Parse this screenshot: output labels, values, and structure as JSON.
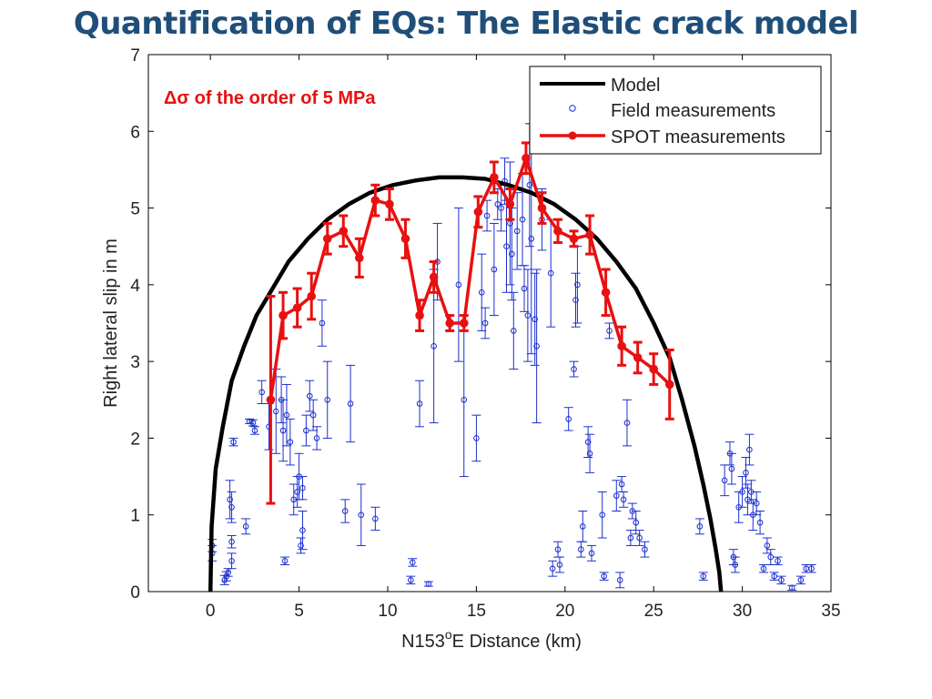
{
  "slide": {
    "title": "Quantification of EQs: The Elastic crack model"
  },
  "chart_data": {
    "type": "scatter",
    "xlabel_prefix": "N153",
    "xlabel_sup": "o",
    "xlabel_suffix": "E Distance (km)",
    "ylabel": "Right lateral slip in m",
    "xlim": [
      -3.5,
      35
    ],
    "ylim": [
      0,
      7
    ],
    "xticks": [
      0,
      5,
      10,
      15,
      20,
      25,
      30,
      35
    ],
    "yticks": [
      0,
      1,
      2,
      3,
      4,
      5,
      6,
      7
    ],
    "grid": false,
    "legend_position": "top-right",
    "annotation": "Δσ of the order of 5 MPa",
    "series": [
      {
        "name": "Model",
        "kind": "line",
        "color": "#000000",
        "x": [
          0,
          0.07,
          0.3,
          0.7,
          1.2,
          1.9,
          2.6,
          3.5,
          4.4,
          5.5,
          6.6,
          7.8,
          9.0,
          10.3,
          11.6,
          12.9,
          14.2,
          15.5,
          16.8,
          18.1,
          19.4,
          20.6,
          21.8,
          22.9,
          24.0,
          25.0,
          25.9,
          26.6,
          27.3,
          27.8,
          28.2,
          28.5,
          28.7,
          28.8
        ],
        "y": [
          0,
          0.85,
          1.6,
          2.15,
          2.75,
          3.2,
          3.6,
          3.95,
          4.3,
          4.6,
          4.85,
          5.05,
          5.2,
          5.3,
          5.36,
          5.4,
          5.4,
          5.38,
          5.3,
          5.2,
          5.05,
          4.85,
          4.6,
          4.3,
          3.95,
          3.5,
          3.05,
          2.5,
          1.9,
          1.4,
          0.95,
          0.55,
          0.25,
          0
        ]
      },
      {
        "name": "Field measurements",
        "kind": "errorbar-points",
        "color": "#1B2FD0",
        "points": [
          {
            "x": 0.1,
            "y": 0.5,
            "err": 0.1
          },
          {
            "x": 0.1,
            "y": 0.6,
            "err": 0.08
          },
          {
            "x": 0.9,
            "y": 0.2,
            "err": 0.06
          },
          {
            "x": 0.8,
            "y": 0.15,
            "err": 0.06
          },
          {
            "x": 1.0,
            "y": 0.25,
            "err": 0.05
          },
          {
            "x": 1.1,
            "y": 1.2,
            "err": 0.25
          },
          {
            "x": 1.2,
            "y": 1.1,
            "err": 0.2
          },
          {
            "x": 1.2,
            "y": 0.65,
            "err": 0.08
          },
          {
            "x": 1.2,
            "y": 0.4,
            "err": 0.1
          },
          {
            "x": 1.3,
            "y": 1.95,
            "err": 0.05
          },
          {
            "x": 2.0,
            "y": 0.85,
            "err": 0.1
          },
          {
            "x": 2.2,
            "y": 2.22,
            "err": 0.03
          },
          {
            "x": 2.4,
            "y": 2.2,
            "err": 0.04
          },
          {
            "x": 2.5,
            "y": 2.1,
            "err": 0.05
          },
          {
            "x": 2.9,
            "y": 2.6,
            "err": 0.15
          },
          {
            "x": 3.3,
            "y": 2.15,
            "err": 0.3
          },
          {
            "x": 3.7,
            "y": 2.35,
            "err": 0.55
          },
          {
            "x": 4.0,
            "y": 2.5,
            "err": 0.3
          },
          {
            "x": 4.1,
            "y": 2.1,
            "err": 0.4
          },
          {
            "x": 4.2,
            "y": 0.4,
            "err": 0.05
          },
          {
            "x": 4.3,
            "y": 2.3,
            "err": 0.4
          },
          {
            "x": 4.5,
            "y": 1.95,
            "err": 0.3
          },
          {
            "x": 4.7,
            "y": 1.2,
            "err": 0.2
          },
          {
            "x": 4.9,
            "y": 1.3,
            "err": 0.2
          },
          {
            "x": 5.0,
            "y": 1.5,
            "err": 0.3
          },
          {
            "x": 5.1,
            "y": 0.6,
            "err": 0.1
          },
          {
            "x": 5.2,
            "y": 0.8,
            "err": 0.25
          },
          {
            "x": 5.2,
            "y": 1.35,
            "err": 0.15
          },
          {
            "x": 5.4,
            "y": 2.1,
            "err": 0.2
          },
          {
            "x": 5.6,
            "y": 2.55,
            "err": 0.2
          },
          {
            "x": 5.8,
            "y": 2.3,
            "err": 0.2
          },
          {
            "x": 6.0,
            "y": 2.0,
            "err": 0.15
          },
          {
            "x": 6.3,
            "y": 3.5,
            "err": 0.3
          },
          {
            "x": 6.6,
            "y": 2.5,
            "err": 0.5
          },
          {
            "x": 7.6,
            "y": 1.05,
            "err": 0.15
          },
          {
            "x": 7.9,
            "y": 2.45,
            "err": 0.5
          },
          {
            "x": 8.5,
            "y": 1.0,
            "err": 0.4
          },
          {
            "x": 9.3,
            "y": 0.95,
            "err": 0.15
          },
          {
            "x": 11.3,
            "y": 0.15,
            "err": 0.05
          },
          {
            "x": 11.4,
            "y": 0.38,
            "err": 0.05
          },
          {
            "x": 11.8,
            "y": 2.45,
            "err": 0.3
          },
          {
            "x": 12.3,
            "y": 0.1,
            "err": 0.03
          },
          {
            "x": 12.6,
            "y": 3.2,
            "err": 1.0
          },
          {
            "x": 12.8,
            "y": 4.3,
            "err": 0.5
          },
          {
            "x": 14.0,
            "y": 4.0,
            "err": 1.0
          },
          {
            "x": 14.3,
            "y": 2.5,
            "err": 1.0
          },
          {
            "x": 15.0,
            "y": 2.0,
            "err": 0.3
          },
          {
            "x": 15.3,
            "y": 3.9,
            "err": 0.5
          },
          {
            "x": 15.5,
            "y": 3.5,
            "err": 0.2
          },
          {
            "x": 15.6,
            "y": 4.9,
            "err": 0.2
          },
          {
            "x": 16.0,
            "y": 4.2,
            "err": 0.6
          },
          {
            "x": 16.2,
            "y": 5.05,
            "err": 0.2
          },
          {
            "x": 16.4,
            "y": 5.0,
            "err": 0.3
          },
          {
            "x": 16.6,
            "y": 5.35,
            "err": 0.3
          },
          {
            "x": 16.7,
            "y": 4.5,
            "err": 0.6
          },
          {
            "x": 16.9,
            "y": 4.8,
            "err": 0.8
          },
          {
            "x": 17.0,
            "y": 4.4,
            "err": 0.6
          },
          {
            "x": 17.1,
            "y": 3.4,
            "err": 0.5
          },
          {
            "x": 17.3,
            "y": 4.7,
            "err": 0.5
          },
          {
            "x": 17.6,
            "y": 4.85,
            "err": 0.6
          },
          {
            "x": 17.7,
            "y": 3.95,
            "err": 0.3
          },
          {
            "x": 17.9,
            "y": 3.6,
            "err": 0.6
          },
          {
            "x": 18.0,
            "y": 5.3,
            "err": 0.8
          },
          {
            "x": 18.1,
            "y": 4.6,
            "err": 1.5
          },
          {
            "x": 18.3,
            "y": 3.55,
            "err": 0.6
          },
          {
            "x": 18.4,
            "y": 3.2,
            "err": 1.0
          },
          {
            "x": 18.7,
            "y": 4.85,
            "err": 0.4
          },
          {
            "x": 19.2,
            "y": 4.15,
            "err": 0.7
          },
          {
            "x": 19.3,
            "y": 0.3,
            "err": 0.1
          },
          {
            "x": 19.6,
            "y": 0.55,
            "err": 0.1
          },
          {
            "x": 19.7,
            "y": 0.35,
            "err": 0.1
          },
          {
            "x": 20.2,
            "y": 2.25,
            "err": 0.15
          },
          {
            "x": 20.5,
            "y": 2.9,
            "err": 0.1
          },
          {
            "x": 20.6,
            "y": 3.8,
            "err": 0.35
          },
          {
            "x": 20.7,
            "y": 4.0,
            "err": 0.5
          },
          {
            "x": 20.9,
            "y": 0.55,
            "err": 0.1
          },
          {
            "x": 21.0,
            "y": 0.85,
            "err": 0.2
          },
          {
            "x": 21.3,
            "y": 1.95,
            "err": 0.2
          },
          {
            "x": 21.4,
            "y": 1.8,
            "err": 0.25
          },
          {
            "x": 21.5,
            "y": 0.5,
            "err": 0.1
          },
          {
            "x": 22.1,
            "y": 1.0,
            "err": 0.3
          },
          {
            "x": 22.2,
            "y": 0.2,
            "err": 0.05
          },
          {
            "x": 22.5,
            "y": 3.4,
            "err": 0.1
          },
          {
            "x": 22.9,
            "y": 1.25,
            "err": 0.2
          },
          {
            "x": 23.1,
            "y": 0.15,
            "err": 0.1
          },
          {
            "x": 23.2,
            "y": 1.4,
            "err": 0.1
          },
          {
            "x": 23.3,
            "y": 1.2,
            "err": 0.1
          },
          {
            "x": 23.5,
            "y": 2.2,
            "err": 0.3
          },
          {
            "x": 23.7,
            "y": 0.7,
            "err": 0.1
          },
          {
            "x": 23.8,
            "y": 1.05,
            "err": 0.1
          },
          {
            "x": 24.0,
            "y": 0.9,
            "err": 0.15
          },
          {
            "x": 24.2,
            "y": 0.7,
            "err": 0.1
          },
          {
            "x": 24.5,
            "y": 0.55,
            "err": 0.1
          },
          {
            "x": 27.6,
            "y": 0.85,
            "err": 0.1
          },
          {
            "x": 27.8,
            "y": 0.2,
            "err": 0.05
          },
          {
            "x": 29.0,
            "y": 1.45,
            "err": 0.2
          },
          {
            "x": 29.3,
            "y": 1.8,
            "err": 0.15
          },
          {
            "x": 29.4,
            "y": 1.6,
            "err": 0.2
          },
          {
            "x": 29.5,
            "y": 0.45,
            "err": 0.1
          },
          {
            "x": 29.6,
            "y": 0.35,
            "err": 0.1
          },
          {
            "x": 29.8,
            "y": 1.1,
            "err": 0.2
          },
          {
            "x": 30.0,
            "y": 1.3,
            "err": 0.2
          },
          {
            "x": 30.2,
            "y": 1.55,
            "err": 0.2
          },
          {
            "x": 30.3,
            "y": 1.2,
            "err": 0.2
          },
          {
            "x": 30.4,
            "y": 1.85,
            "err": 0.2
          },
          {
            "x": 30.5,
            "y": 1.3,
            "err": 0.15
          },
          {
            "x": 30.6,
            "y": 1.0,
            "err": 0.2
          },
          {
            "x": 30.8,
            "y": 1.15,
            "err": 0.15
          },
          {
            "x": 31.0,
            "y": 0.9,
            "err": 0.15
          },
          {
            "x": 31.2,
            "y": 0.3,
            "err": 0.05
          },
          {
            "x": 31.4,
            "y": 0.6,
            "err": 0.1
          },
          {
            "x": 31.6,
            "y": 0.45,
            "err": 0.1
          },
          {
            "x": 31.8,
            "y": 0.2,
            "err": 0.05
          },
          {
            "x": 32.0,
            "y": 0.4,
            "err": 0.05
          },
          {
            "x": 32.2,
            "y": 0.15,
            "err": 0.05
          },
          {
            "x": 32.8,
            "y": 0.05,
            "err": 0.03
          },
          {
            "x": 33.3,
            "y": 0.15,
            "err": 0.05
          },
          {
            "x": 33.6,
            "y": 0.3,
            "err": 0.05
          },
          {
            "x": 33.9,
            "y": 0.3,
            "err": 0.05
          }
        ]
      },
      {
        "name": "SPOT measurements",
        "kind": "line-errorbar",
        "color": "#E81010",
        "points": [
          {
            "x": 3.4,
            "y": 2.5,
            "err": 1.35
          },
          {
            "x": 4.1,
            "y": 3.6,
            "err": 0.3
          },
          {
            "x": 4.9,
            "y": 3.7,
            "err": 0.25
          },
          {
            "x": 5.7,
            "y": 3.85,
            "err": 0.3
          },
          {
            "x": 6.6,
            "y": 4.6,
            "err": 0.2
          },
          {
            "x": 7.5,
            "y": 4.7,
            "err": 0.2
          },
          {
            "x": 8.4,
            "y": 4.35,
            "err": 0.25
          },
          {
            "x": 9.3,
            "y": 5.1,
            "err": 0.2
          },
          {
            "x": 10.1,
            "y": 5.05,
            "err": 0.2
          },
          {
            "x": 11.0,
            "y": 4.6,
            "err": 0.25
          },
          {
            "x": 11.8,
            "y": 3.6,
            "err": 0.2
          },
          {
            "x": 12.6,
            "y": 4.1,
            "err": 0.2
          },
          {
            "x": 13.5,
            "y": 3.5,
            "err": 0.1
          },
          {
            "x": 14.3,
            "y": 3.5,
            "err": 0.1
          },
          {
            "x": 15.1,
            "y": 4.95,
            "err": 0.2
          },
          {
            "x": 16.0,
            "y": 5.4,
            "err": 0.2
          },
          {
            "x": 16.9,
            "y": 5.05,
            "err": 0.2
          },
          {
            "x": 17.8,
            "y": 5.65,
            "err": 0.2
          },
          {
            "x": 18.7,
            "y": 5.0,
            "err": 0.2
          },
          {
            "x": 19.6,
            "y": 4.7,
            "err": 0.15
          },
          {
            "x": 20.5,
            "y": 4.6,
            "err": 0.1
          },
          {
            "x": 21.4,
            "y": 4.65,
            "err": 0.25
          },
          {
            "x": 22.3,
            "y": 3.9,
            "err": 0.3
          },
          {
            "x": 23.2,
            "y": 3.2,
            "err": 0.25
          },
          {
            "x": 24.1,
            "y": 3.05,
            "err": 0.2
          },
          {
            "x": 25.0,
            "y": 2.9,
            "err": 0.2
          },
          {
            "x": 25.9,
            "y": 2.7,
            "err": 0.45
          }
        ]
      }
    ]
  }
}
